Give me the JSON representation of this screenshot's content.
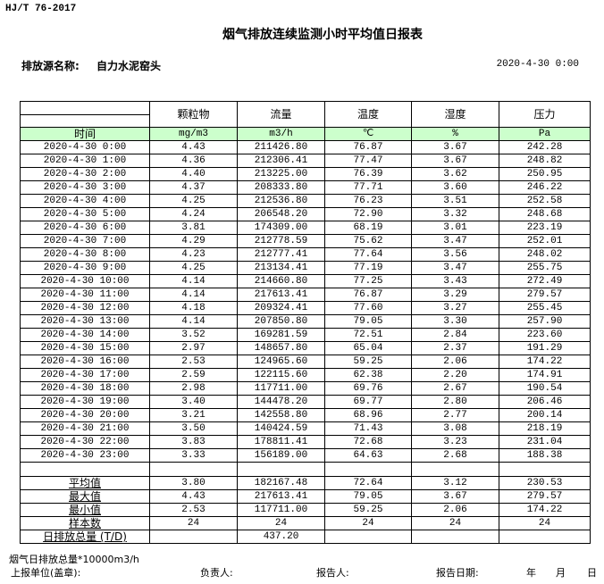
{
  "header": {
    "standard": "HJ/T  76-2017",
    "title": "烟气排放连续监测小时平均值日报表",
    "source_label": "排放源名称:",
    "source_name": "自力水泥窑头",
    "date": "2020-4-30 0:00"
  },
  "table": {
    "columns": [
      "颗粒物",
      "流量",
      "温度",
      "湿度",
      "压力"
    ],
    "time_label": "时间",
    "units": [
      "mg/m3",
      "m3/h",
      "℃",
      "%",
      "Pa"
    ],
    "rows": [
      [
        "2020-4-30 0:00",
        "4.43",
        "211426.80",
        "76.87",
        "3.67",
        "242.28"
      ],
      [
        "2020-4-30 1:00",
        "4.36",
        "212306.41",
        "77.47",
        "3.67",
        "248.82"
      ],
      [
        "2020-4-30 2:00",
        "4.40",
        "213225.00",
        "76.39",
        "3.62",
        "250.95"
      ],
      [
        "2020-4-30 3:00",
        "4.37",
        "208333.80",
        "77.71",
        "3.60",
        "246.22"
      ],
      [
        "2020-4-30 4:00",
        "4.25",
        "212536.80",
        "76.23",
        "3.51",
        "252.58"
      ],
      [
        "2020-4-30 5:00",
        "4.24",
        "206548.20",
        "72.90",
        "3.32",
        "248.68"
      ],
      [
        "2020-4-30 6:00",
        "3.81",
        "174309.00",
        "68.19",
        "3.01",
        "223.19"
      ],
      [
        "2020-4-30 7:00",
        "4.29",
        "212778.59",
        "75.62",
        "3.47",
        "252.01"
      ],
      [
        "2020-4-30 8:00",
        "4.23",
        "212777.41",
        "77.64",
        "3.56",
        "248.02"
      ],
      [
        "2020-4-30 9:00",
        "4.25",
        "213134.41",
        "77.19",
        "3.47",
        "255.75"
      ],
      [
        "2020-4-30 10:00",
        "4.14",
        "214660.80",
        "77.25",
        "3.43",
        "272.49"
      ],
      [
        "2020-4-30 11:00",
        "4.14",
        "217613.41",
        "76.87",
        "3.29",
        "279.57"
      ],
      [
        "2020-4-30 12:00",
        "4.18",
        "209324.41",
        "77.60",
        "3.27",
        "255.45"
      ],
      [
        "2020-4-30 13:00",
        "4.14",
        "207850.80",
        "79.05",
        "3.30",
        "257.90"
      ],
      [
        "2020-4-30 14:00",
        "3.52",
        "169281.59",
        "72.51",
        "2.84",
        "223.60"
      ],
      [
        "2020-4-30 15:00",
        "2.97",
        "148657.80",
        "65.04",
        "2.37",
        "191.29"
      ],
      [
        "2020-4-30 16:00",
        "2.53",
        "124965.60",
        "59.25",
        "2.06",
        "174.22"
      ],
      [
        "2020-4-30 17:00",
        "2.59",
        "122115.60",
        "62.38",
        "2.20",
        "174.91"
      ],
      [
        "2020-4-30 18:00",
        "2.98",
        "117711.00",
        "69.76",
        "2.67",
        "190.54"
      ],
      [
        "2020-4-30 19:00",
        "3.40",
        "144478.20",
        "69.77",
        "2.80",
        "206.46"
      ],
      [
        "2020-4-30 20:00",
        "3.21",
        "142558.80",
        "68.96",
        "2.77",
        "200.14"
      ],
      [
        "2020-4-30 21:00",
        "3.50",
        "140424.59",
        "71.43",
        "3.08",
        "218.19"
      ],
      [
        "2020-4-30 22:00",
        "3.83",
        "178811.41",
        "72.68",
        "3.23",
        "231.04"
      ],
      [
        "2020-4-30 23:00",
        "3.33",
        "156189.00",
        "64.63",
        "2.68",
        "188.38"
      ]
    ],
    "stats": [
      [
        "平均值",
        "3.80",
        "182167.48",
        "72.64",
        "3.12",
        "230.53"
      ],
      [
        "最大值",
        "4.43",
        "217613.41",
        "79.05",
        "3.67",
        "279.57"
      ],
      [
        "最小值",
        "2.53",
        "117711.00",
        "59.25",
        "2.06",
        "174.22"
      ],
      [
        "样本数",
        "24",
        "24",
        "24",
        "24",
        "24"
      ],
      [
        "日排放总量 (T/D)",
        "",
        "437.20",
        "",
        "",
        ""
      ]
    ],
    "unit_bg": "#ccffcc"
  },
  "footer": {
    "note": "烟气日排放总量*10000m3/h",
    "unit_label": "上报单位(盖章):",
    "responsible_label": "负责人:",
    "reporter_label": "报告人:",
    "report_date_label": "报告日期:",
    "year": "年",
    "month": "月",
    "day": "日"
  }
}
